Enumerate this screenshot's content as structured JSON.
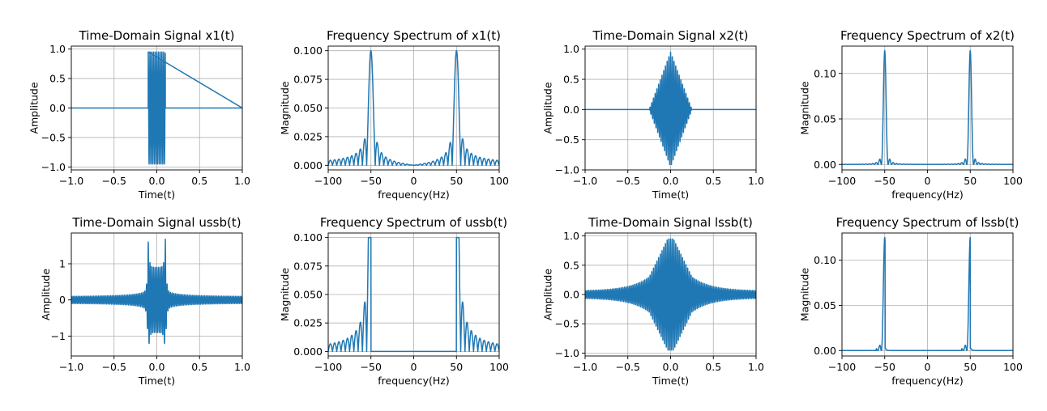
{
  "colors": {
    "line": "#1f77b4",
    "grid": "#b0b0b0",
    "axes": "#000000"
  },
  "chart_data": [
    {
      "type": "line",
      "title": "Time-Domain Signal x1(t)",
      "xlabel": "Time(t)",
      "ylabel": "Amplitude",
      "xlim": [
        -1,
        1
      ],
      "ylim": [
        -1.05,
        1.05
      ],
      "xticks": [
        -1,
        -0.5,
        0,
        0.5,
        1
      ],
      "xtick_labels": [
        "−1.0",
        "−0.5",
        "0.0",
        "0.5",
        "1.0"
      ],
      "yticks": [
        -1,
        -0.5,
        0,
        0.5,
        1
      ],
      "ytick_labels": [
        "−1.0",
        "−0.5",
        "0.0",
        "0.5",
        "1.0"
      ],
      "grid": true,
      "signal": "gated cosine, amplitude 0.95 for |t| < 0.1, zero elsewhere"
    },
    {
      "type": "line",
      "title": "Frequency Spectrum of x1(t)",
      "xlabel": "frequency(Hz)",
      "ylabel": "Magnitude",
      "xlim": [
        -100,
        100
      ],
      "ylim": [
        -0.004,
        0.104
      ],
      "xticks": [
        -100,
        -50,
        0,
        50,
        100
      ],
      "xtick_labels": [
        "−100",
        "−50",
        "0",
        "50",
        "100"
      ],
      "yticks": [
        0,
        0.025,
        0.05,
        0.075,
        0.1
      ],
      "ytick_labels": [
        "0.000",
        "0.025",
        "0.050",
        "0.075",
        "0.100"
      ],
      "grid": true,
      "peaks": [
        {
          "x": -50,
          "y": 0.1
        },
        {
          "x": 50,
          "y": 0.1
        }
      ]
    },
    {
      "type": "line",
      "title": "Time-Domain Signal x2(t)",
      "xlabel": "Time(t)",
      "ylabel": "Amplitude",
      "xlim": [
        -1,
        1
      ],
      "ylim": [
        -1.0,
        1.05
      ],
      "xticks": [
        -1,
        -0.5,
        0,
        0.5,
        1
      ],
      "xtick_labels": [
        "−1.0",
        "−0.5",
        "0.0",
        "0.5",
        "1.0"
      ],
      "yticks": [
        -1,
        -0.5,
        0,
        0.5,
        1
      ],
      "ytick_labels": [
        "−1.0",
        "−0.5",
        "0.0",
        "0.5",
        "1.0"
      ],
      "grid": true,
      "signal": "triangle-modulated cosine, peak 0.95 at t=0, zero for |t| > 0.25"
    },
    {
      "type": "line",
      "title": "Frequency Spectrum of x2(t)",
      "xlabel": "frequency(Hz)",
      "ylabel": "Magnitude",
      "xlim": [
        -100,
        100
      ],
      "ylim": [
        -0.006,
        0.13
      ],
      "xticks": [
        -100,
        -50,
        0,
        50,
        100
      ],
      "xtick_labels": [
        "−100",
        "−50",
        "0",
        "50",
        "100"
      ],
      "yticks": [
        0,
        0.05,
        0.1
      ],
      "ytick_labels": [
        "0.00",
        "0.05",
        "0.10"
      ],
      "grid": true,
      "peaks": [
        {
          "x": -50,
          "y": 0.125
        },
        {
          "x": 50,
          "y": 0.125
        }
      ]
    },
    {
      "type": "line",
      "title": "Time-Domain Signal ussb(t)",
      "xlabel": "Time(t)",
      "ylabel": "Amplitude",
      "xlim": [
        -1,
        1
      ],
      "ylim": [
        -1.55,
        1.85
      ],
      "xticks": [
        -1,
        -0.5,
        0,
        0.5,
        1
      ],
      "xtick_labels": [
        "−1.0",
        "−0.5",
        "0.0",
        "0.5",
        "1.0"
      ],
      "yticks": [
        -1,
        0,
        1
      ],
      "ytick_labels": [
        "−1",
        "0",
        "1"
      ],
      "grid": true,
      "signal": "upper-sideband signal, spikes to 1.72 at t=±0.1, tails decaying toward ±0.08"
    },
    {
      "type": "line",
      "title": "Frequency Spectrum of ussb(t)",
      "xlabel": "frequency(Hz)",
      "ylabel": "Magnitude",
      "xlim": [
        -100,
        100
      ],
      "ylim": [
        -0.004,
        0.104
      ],
      "xticks": [
        -100,
        -50,
        0,
        50,
        100
      ],
      "xtick_labels": [
        "−100",
        "−50",
        "0",
        "50",
        "100"
      ],
      "yticks": [
        0,
        0.025,
        0.05,
        0.075,
        0.1
      ],
      "ytick_labels": [
        "0.000",
        "0.025",
        "0.050",
        "0.075",
        "0.100"
      ],
      "grid": true,
      "peaks": [
        {
          "x": -50,
          "y": 0.1
        },
        {
          "x": 50,
          "y": 0.1
        }
      ]
    },
    {
      "type": "line",
      "title": "Time-Domain Signal lssb(t)",
      "xlabel": "Time(t)",
      "ylabel": "Amplitude",
      "xlim": [
        -1,
        1
      ],
      "ylim": [
        -1.05,
        1.05
      ],
      "xticks": [
        -1,
        -0.5,
        0,
        0.5,
        1
      ],
      "xtick_labels": [
        "−1.0",
        "−0.5",
        "0.0",
        "0.5",
        "1.0"
      ],
      "yticks": [
        -1,
        -0.5,
        0,
        0.5,
        1
      ],
      "ytick_labels": [
        "−1.0",
        "−0.5",
        "0.0",
        "0.5",
        "1.0"
      ],
      "grid": true,
      "signal": "lower-sideband signal, peak 0.95 at t=0, decaying to about ±0.06 at t=±1"
    },
    {
      "type": "line",
      "title": "Frequency Spectrum of lssb(t)",
      "xlabel": "frequency(Hz)",
      "ylabel": "Magnitude",
      "xlim": [
        -100,
        100
      ],
      "ylim": [
        -0.006,
        0.13
      ],
      "xticks": [
        -100,
        -50,
        0,
        50,
        100
      ],
      "xtick_labels": [
        "−100",
        "−50",
        "0",
        "50",
        "100"
      ],
      "yticks": [
        0,
        0.05,
        0.1
      ],
      "ytick_labels": [
        "0.00",
        "0.05",
        "0.10"
      ],
      "grid": true,
      "peaks": [
        {
          "x": -50,
          "y": 0.125
        },
        {
          "x": 50,
          "y": 0.125
        }
      ]
    }
  ]
}
